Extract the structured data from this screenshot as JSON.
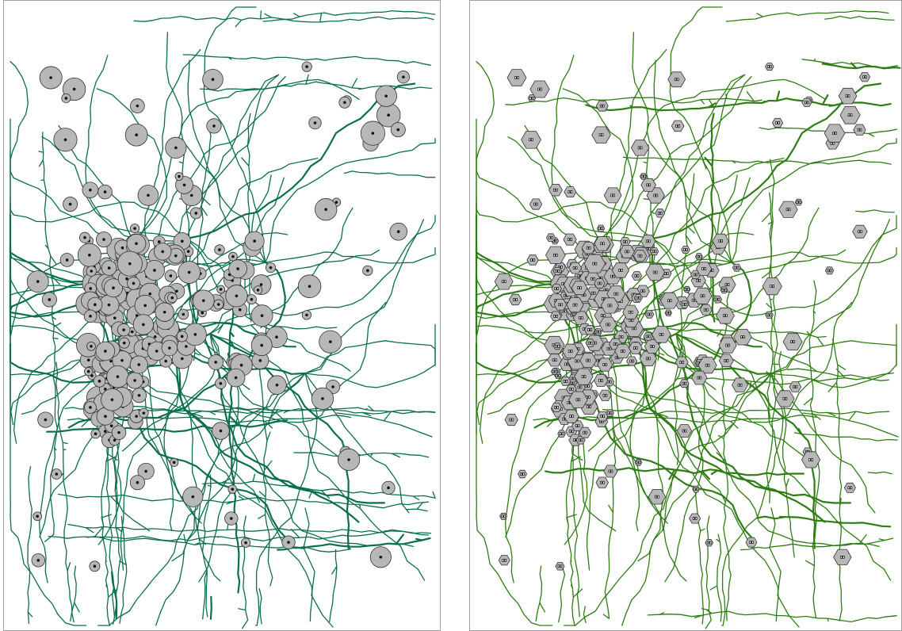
{
  "maps": [
    {
      "symbol_shape": "circle",
      "network_color": "#0b6e4f",
      "symbol_fill": "#b7b7b7",
      "symbol_stroke": "#333333",
      "center_dot_color": "#111111"
    },
    {
      "symbol_shape": "hexagon",
      "network_color": "#2e7d14",
      "symbol_fill": "#b7b7b7",
      "symbol_stroke": "#333333",
      "center_dot_color": "#111111"
    }
  ]
}
